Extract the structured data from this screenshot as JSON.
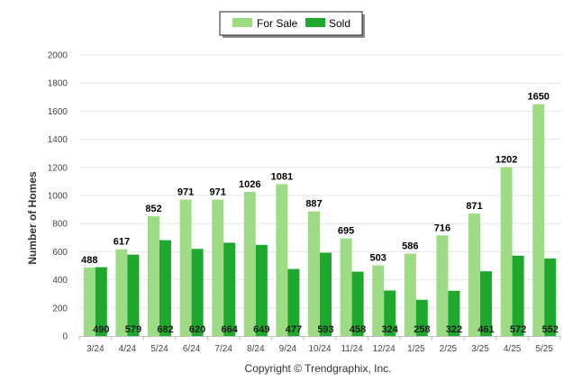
{
  "chart_data": {
    "type": "bar",
    "categories": [
      "3/24",
      "4/24",
      "5/24",
      "6/24",
      "7/24",
      "8/24",
      "9/24",
      "10/24",
      "11/24",
      "12/24",
      "1/25",
      "2/25",
      "3/25",
      "4/25",
      "5/25"
    ],
    "series": [
      {
        "name": "For Sale",
        "color": "#9ddc85",
        "values": [
          488,
          617,
          852,
          971,
          971,
          1026,
          1081,
          887,
          695,
          503,
          586,
          716,
          871,
          1202,
          1650
        ]
      },
      {
        "name": "Sold",
        "color": "#1ea82d",
        "values": [
          490,
          579,
          682,
          620,
          664,
          649,
          477,
          593,
          458,
          324,
          258,
          322,
          461,
          572,
          552
        ]
      }
    ],
    "xlabel": "",
    "ylabel": "Number of Homes",
    "ylim": [
      0,
      2000
    ],
    "yticks": [
      0,
      200,
      400,
      600,
      800,
      1000,
      1200,
      1400,
      1600,
      1800,
      2000
    ],
    "grid": true,
    "legend_position": "top-center",
    "credit": "Copyright © Trendgraphix, Inc."
  }
}
